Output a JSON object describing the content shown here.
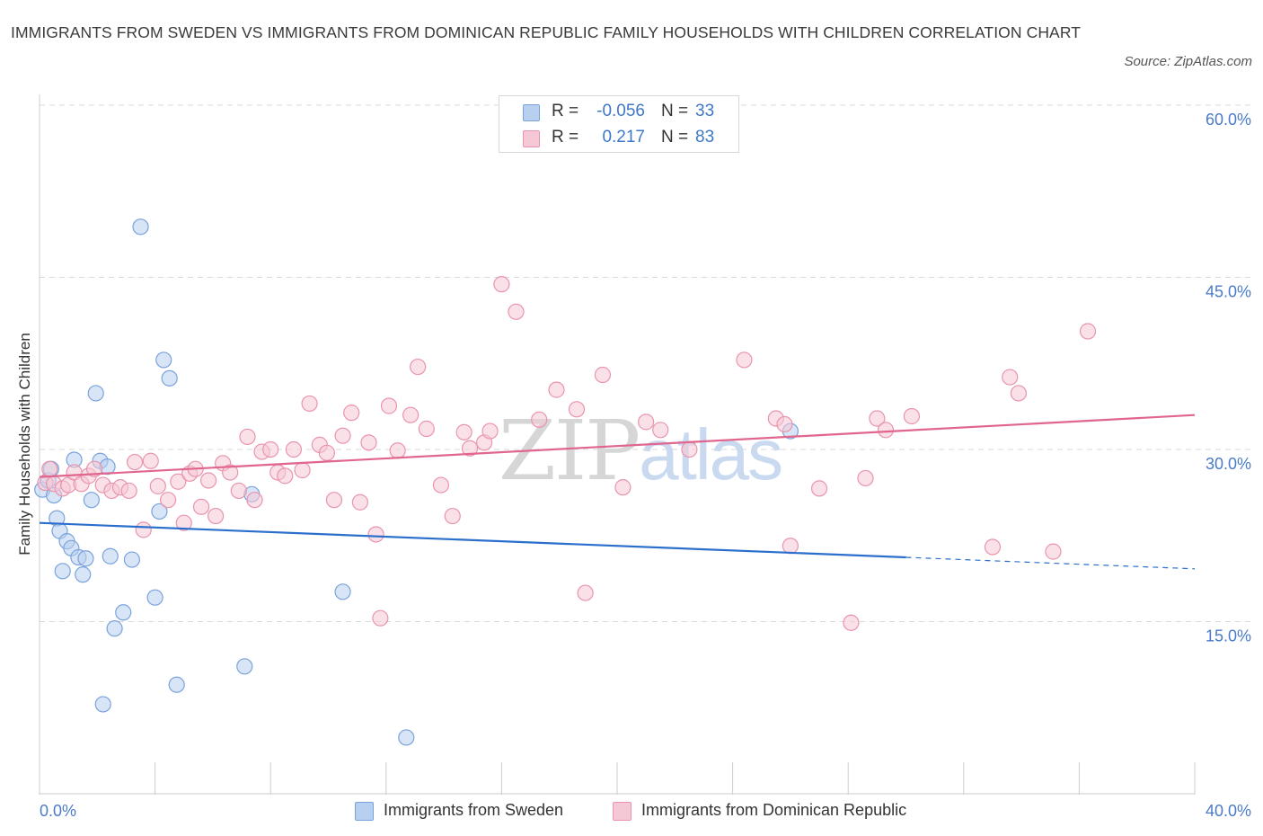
{
  "title": "IMMIGRANTS FROM SWEDEN VS IMMIGRANTS FROM DOMINICAN REPUBLIC FAMILY HOUSEHOLDS WITH CHILDREN CORRELATION CHART",
  "source": "Source: ZipAtlas.com",
  "watermark": {
    "part1": "ZIP",
    "part2": "atlas"
  },
  "legend": {
    "sweden": {
      "r_label": "R =",
      "r_value": "-0.056",
      "n_label": "N =",
      "n_value": "33"
    },
    "dominican": {
      "r_label": "R =",
      "r_value": "0.217",
      "n_label": "N =",
      "n_value": "83"
    }
  },
  "bottom_legend": {
    "sweden": "Immigrants from Sweden",
    "dominican": "Immigrants from Dominican Republic"
  },
  "colors": {
    "sweden_fill": "#b8d0f0",
    "sweden_stroke": "#7aa3dc",
    "sweden_line": "#2b6fcc",
    "dominican_fill": "#f6c8d6",
    "dominican_stroke": "#e994ae",
    "dominican_line": "#e0668e",
    "grid": "#d9d9d9",
    "tick_label": "#4a7bc8"
  },
  "chart_data": {
    "type": "scatter",
    "title": "IMMIGRANTS FROM SWEDEN VS IMMIGRANTS FROM DOMINICAN REPUBLIC FAMILY HOUSEHOLDS WITH CHILDREN CORRELATION CHART",
    "xlabel": "",
    "ylabel": "Family Households with Children",
    "xlim": [
      0,
      40
    ],
    "ylim": [
      0,
      60
    ],
    "x_tick_labels": [
      "0.0%",
      "40.0%"
    ],
    "y_ticks": [
      15,
      30,
      45,
      60
    ],
    "y_tick_labels": [
      "15.0%",
      "30.0%",
      "45.0%",
      "60.0%"
    ],
    "grid": true,
    "series": [
      {
        "name": "Immigrants from Sweden",
        "R": -0.056,
        "N": 33,
        "trend": {
          "x": [
            0,
            30
          ],
          "y": [
            23.6,
            20.6
          ],
          "dashed_x": [
            30,
            40
          ],
          "dashed_y": [
            20.6,
            19.6
          ]
        },
        "points": [
          [
            0.1,
            26.5
          ],
          [
            0.3,
            27.3
          ],
          [
            0.4,
            28.3
          ],
          [
            0.5,
            26.0
          ],
          [
            0.6,
            24.0
          ],
          [
            0.7,
            22.9
          ],
          [
            0.8,
            19.4
          ],
          [
            0.95,
            22.0
          ],
          [
            1.1,
            21.4
          ],
          [
            1.2,
            29.1
          ],
          [
            1.35,
            20.6
          ],
          [
            1.5,
            19.1
          ],
          [
            1.6,
            20.5
          ],
          [
            1.8,
            25.6
          ],
          [
            1.95,
            34.9
          ],
          [
            2.1,
            29.0
          ],
          [
            2.2,
            7.8
          ],
          [
            2.35,
            28.5
          ],
          [
            2.45,
            20.7
          ],
          [
            2.6,
            14.4
          ],
          [
            2.9,
            15.8
          ],
          [
            3.2,
            20.4
          ],
          [
            3.5,
            49.4
          ],
          [
            4.0,
            17.1
          ],
          [
            4.15,
            24.6
          ],
          [
            4.3,
            37.8
          ],
          [
            4.5,
            36.2
          ],
          [
            4.75,
            9.5
          ],
          [
            7.1,
            11.1
          ],
          [
            7.35,
            26.1
          ],
          [
            10.5,
            17.6
          ],
          [
            12.7,
            4.9
          ],
          [
            26.0,
            31.6
          ]
        ]
      },
      {
        "name": "Immigrants from Dominican Republic",
        "R": 0.217,
        "N": 83,
        "trend": {
          "x": [
            0,
            40
          ],
          "y": [
            27.6,
            33.0
          ]
        },
        "points": [
          [
            0.2,
            27.1
          ],
          [
            0.35,
            28.3
          ],
          [
            0.5,
            27.0
          ],
          [
            0.8,
            26.6
          ],
          [
            1.0,
            26.9
          ],
          [
            1.2,
            28.0
          ],
          [
            1.45,
            27.0
          ],
          [
            1.7,
            27.7
          ],
          [
            1.9,
            28.3
          ],
          [
            2.2,
            26.9
          ],
          [
            2.5,
            26.4
          ],
          [
            2.8,
            26.7
          ],
          [
            3.1,
            26.4
          ],
          [
            3.3,
            28.9
          ],
          [
            3.6,
            23.0
          ],
          [
            3.85,
            29.0
          ],
          [
            4.1,
            26.8
          ],
          [
            4.45,
            25.6
          ],
          [
            4.8,
            27.2
          ],
          [
            5.0,
            23.6
          ],
          [
            5.2,
            27.9
          ],
          [
            5.4,
            28.3
          ],
          [
            5.6,
            25.0
          ],
          [
            5.85,
            27.3
          ],
          [
            6.1,
            24.2
          ],
          [
            6.35,
            28.8
          ],
          [
            6.6,
            28.0
          ],
          [
            6.9,
            26.4
          ],
          [
            7.2,
            31.1
          ],
          [
            7.45,
            25.6
          ],
          [
            7.7,
            29.8
          ],
          [
            8.0,
            30.0
          ],
          [
            8.25,
            28.0
          ],
          [
            8.5,
            27.7
          ],
          [
            8.8,
            30.0
          ],
          [
            9.1,
            28.2
          ],
          [
            9.35,
            34.0
          ],
          [
            9.7,
            30.4
          ],
          [
            9.95,
            29.7
          ],
          [
            10.2,
            25.6
          ],
          [
            10.5,
            31.2
          ],
          [
            10.8,
            33.2
          ],
          [
            11.1,
            25.4
          ],
          [
            11.4,
            30.6
          ],
          [
            11.65,
            22.6
          ],
          [
            11.8,
            15.3
          ],
          [
            12.1,
            33.8
          ],
          [
            12.4,
            29.9
          ],
          [
            12.85,
            33.0
          ],
          [
            13.1,
            37.2
          ],
          [
            13.4,
            31.8
          ],
          [
            13.9,
            26.9
          ],
          [
            14.3,
            24.2
          ],
          [
            14.7,
            31.5
          ],
          [
            14.9,
            30.1
          ],
          [
            15.4,
            30.6
          ],
          [
            15.6,
            31.6
          ],
          [
            16.0,
            44.4
          ],
          [
            16.5,
            42.0
          ],
          [
            17.3,
            32.6
          ],
          [
            17.9,
            35.2
          ],
          [
            18.6,
            33.5
          ],
          [
            18.9,
            17.5
          ],
          [
            19.5,
            36.5
          ],
          [
            20.2,
            26.7
          ],
          [
            21.0,
            32.4
          ],
          [
            21.5,
            31.7
          ],
          [
            22.5,
            30.0
          ],
          [
            24.4,
            37.8
          ],
          [
            25.5,
            32.7
          ],
          [
            25.8,
            32.2
          ],
          [
            26.0,
            21.6
          ],
          [
            27.0,
            26.6
          ],
          [
            28.1,
            14.9
          ],
          [
            28.6,
            27.5
          ],
          [
            29.0,
            32.7
          ],
          [
            29.3,
            31.7
          ],
          [
            30.2,
            32.9
          ],
          [
            33.0,
            21.5
          ],
          [
            33.6,
            36.3
          ],
          [
            33.9,
            34.9
          ],
          [
            35.1,
            21.1
          ],
          [
            36.3,
            40.3
          ]
        ]
      }
    ]
  }
}
